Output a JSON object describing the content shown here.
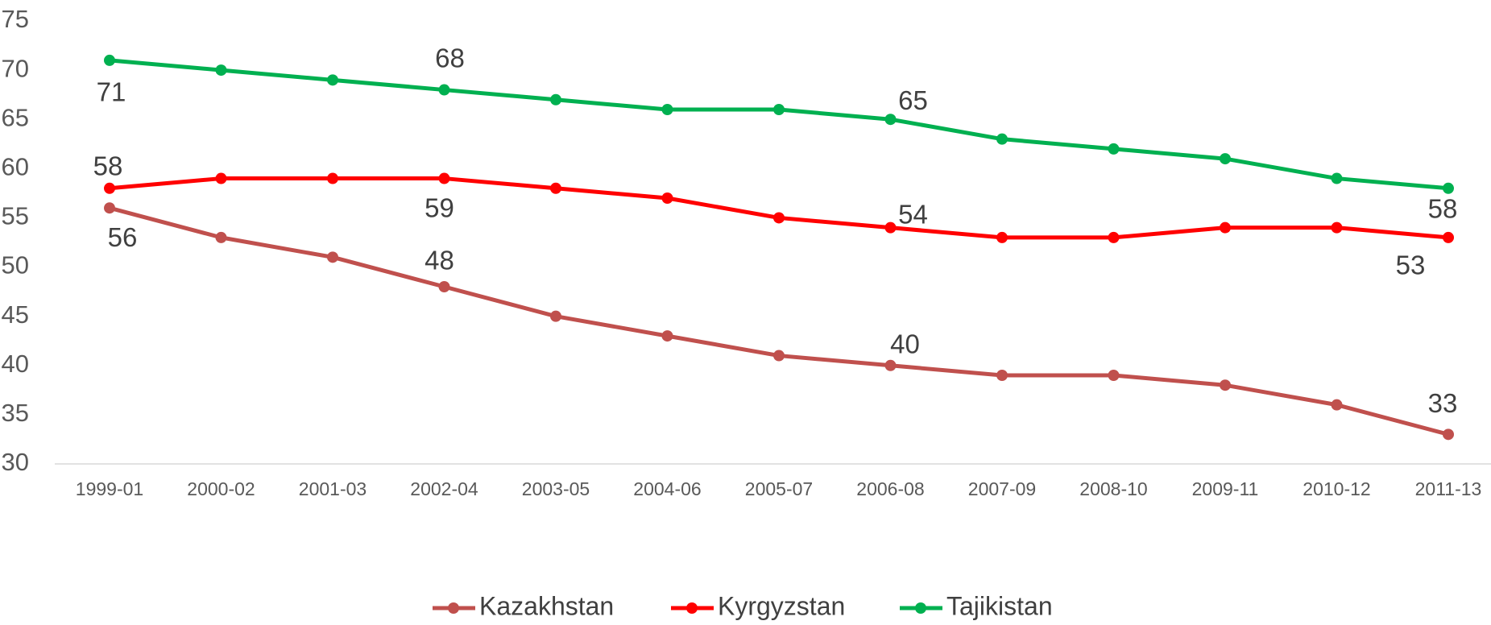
{
  "chart_data": {
    "type": "line",
    "categories": [
      "1999-01",
      "2000-02",
      "2001-03",
      "2002-04",
      "2003-05",
      "2004-06",
      "2005-07",
      "2006-08",
      "2007-09",
      "2008-10",
      "2009-11",
      "2010-12",
      "2011-13"
    ],
    "series": [
      {
        "name": "Kazakhstan",
        "color": "#c0504d",
        "values": [
          56,
          53,
          51,
          48,
          45,
          43,
          41,
          40,
          39,
          39,
          38,
          36,
          33
        ]
      },
      {
        "name": "Kyrgyzstan",
        "color": "#ff0000",
        "values": [
          58,
          59,
          59,
          59,
          58,
          57,
          55,
          54,
          53,
          53,
          54,
          54,
          53
        ]
      },
      {
        "name": "Tajikistan",
        "color": "#00b050",
        "values": [
          71,
          70,
          69,
          68,
          67,
          66,
          66,
          65,
          63,
          62,
          61,
          59,
          58
        ]
      }
    ],
    "ylim": [
      30,
      75
    ],
    "yticks": [
      30,
      35,
      40,
      45,
      50,
      55,
      60,
      65,
      70,
      75
    ],
    "grid": false,
    "legend": "bottom"
  }
}
